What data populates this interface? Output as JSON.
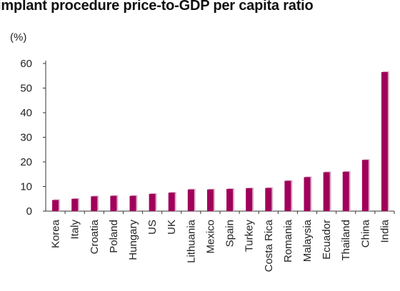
{
  "chart_data": {
    "type": "bar",
    "title": "implant procedure price-to-GDP per capita ratio",
    "unit_label": "(%)",
    "xlabel": "",
    "ylabel": "",
    "ylim": [
      0,
      60
    ],
    "yticks": [
      0,
      10,
      20,
      30,
      40,
      50,
      60
    ],
    "grid": false,
    "legend": "none",
    "bar_color": "#a0005a",
    "categories": [
      "Korea",
      "Italy",
      "Croatia",
      "Poland",
      "Hungary",
      "US",
      "UK",
      "Lithuania",
      "Mexico",
      "Spain",
      "Turkey",
      "Costa Rica",
      "Romania",
      "Malaysia",
      "Ecuador",
      "Thailand",
      "China",
      "India"
    ],
    "values": [
      4.5,
      5,
      6,
      6.2,
      6.2,
      7,
      7.5,
      8.8,
      8.8,
      9,
      9.3,
      9.4,
      12.3,
      13.8,
      15.8,
      16,
      20.8,
      56.5
    ]
  }
}
